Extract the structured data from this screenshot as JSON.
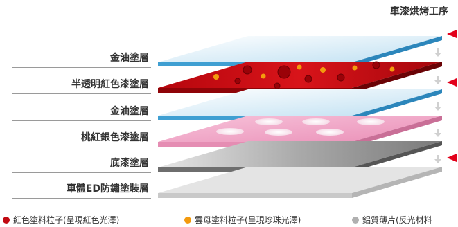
{
  "title": "車漆烘烤工序",
  "layers": [
    {
      "label": "金油塗層"
    },
    {
      "label": "半透明紅色漆塗層"
    },
    {
      "label": "金油塗層"
    },
    {
      "label": "桃紅銀色漆塗層"
    },
    {
      "label": "底漆塗層"
    },
    {
      "label": "車體ED防鏽塗裝層"
    }
  ],
  "legend": [
    {
      "label": "紅色塗料粒子(呈現紅色光澤)",
      "color": "#c10a12"
    },
    {
      "label": "雲母塗料粒子(呈現珍珠光澤)",
      "color": "#f39a0e"
    },
    {
      "label": "鋁質薄片(反光材料",
      "color": "#b0b0b0"
    }
  ],
  "colors": {
    "arrow_red": "#e2001a",
    "clear_blue": "#3f9fd2",
    "red_layer": "#c40a10",
    "pink_layer": "#ef9fc4",
    "gray_layer": "#8c8c8c"
  }
}
